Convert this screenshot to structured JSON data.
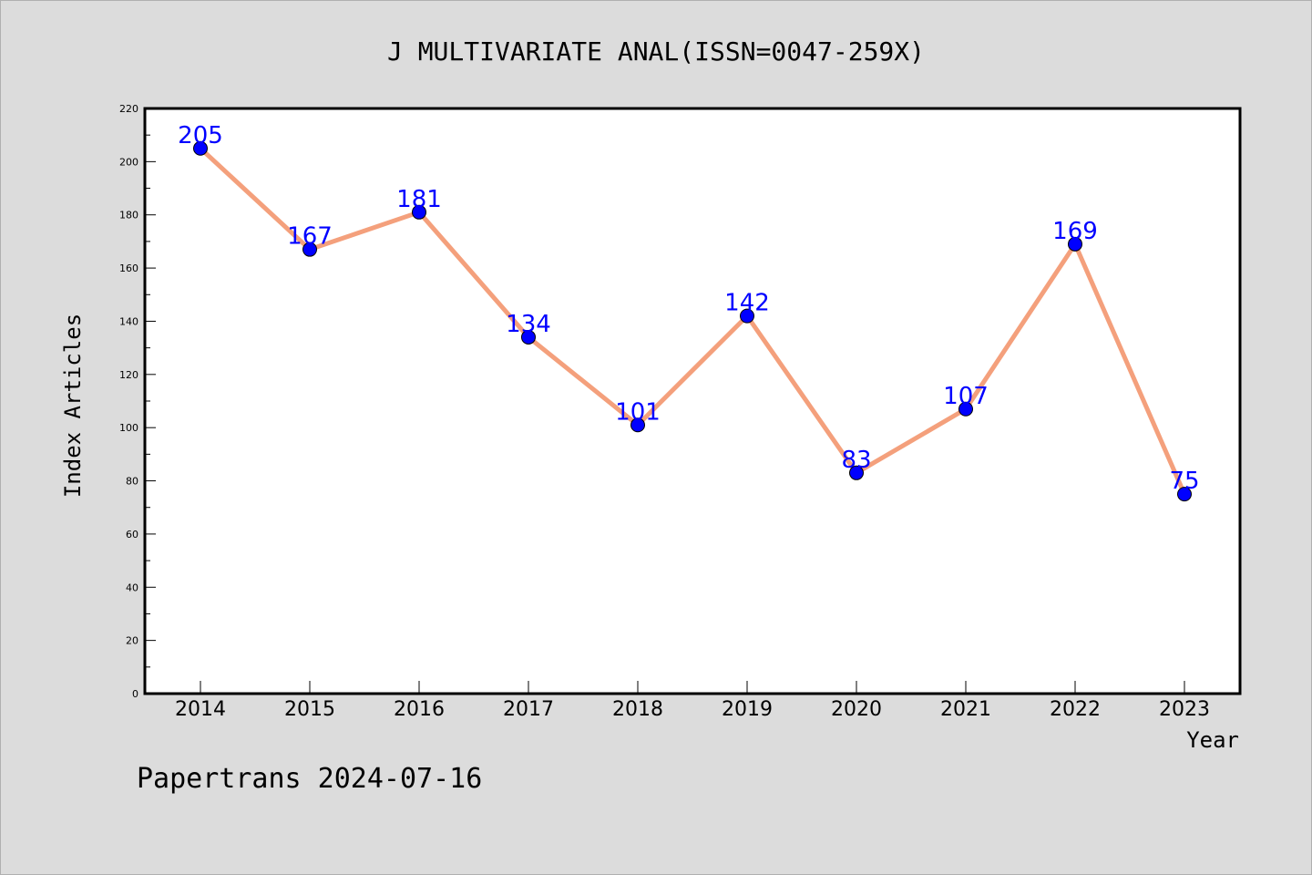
{
  "chart_data": {
    "type": "line",
    "title": "J MULTIVARIATE ANAL(ISSN=0047-259X)",
    "xlabel": "Year",
    "ylabel": "Index Articles",
    "categories": [
      "2014",
      "2015",
      "2016",
      "2017",
      "2018",
      "2019",
      "2020",
      "2021",
      "2022",
      "2023"
    ],
    "values": [
      205,
      167,
      181,
      134,
      101,
      142,
      83,
      107,
      169,
      75
    ],
    "ylim": [
      0,
      220
    ],
    "yticks": [
      0,
      20,
      40,
      60,
      80,
      100,
      120,
      140,
      160,
      180,
      200,
      220
    ],
    "grid": false,
    "legend": "none",
    "line_color": "#f4a07c",
    "marker_color": "#0000ff",
    "label_color": "#0000ff"
  },
  "footer": {
    "text": "Papertrans 2024-07-16"
  }
}
